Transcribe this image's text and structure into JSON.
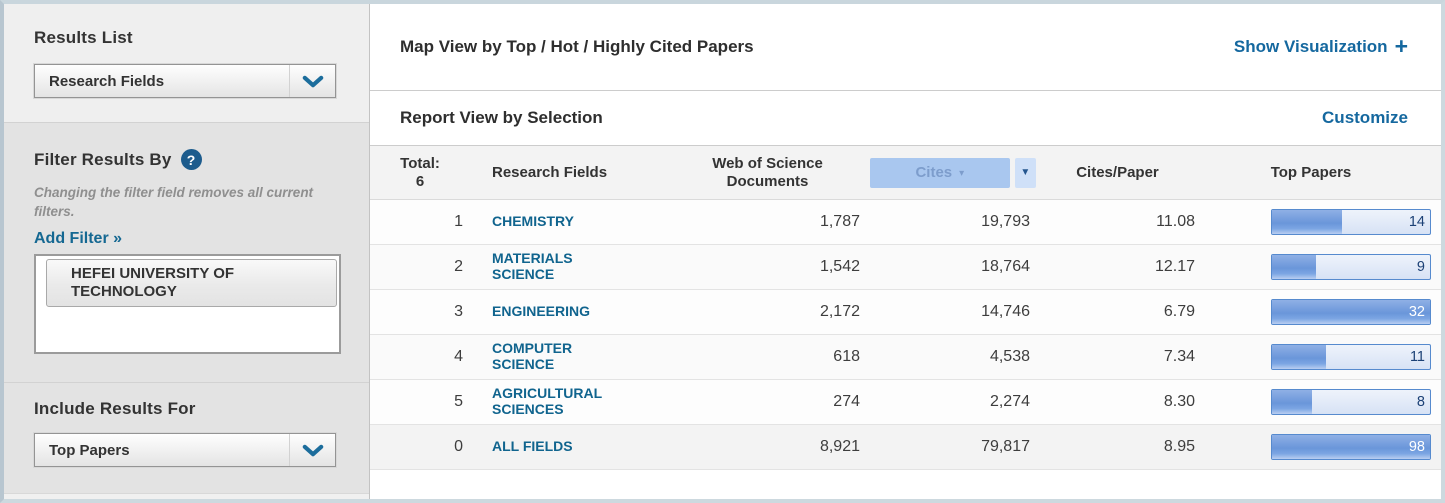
{
  "sidebar": {
    "results_list": {
      "label": "Results List",
      "value": "Research Fields"
    },
    "filter": {
      "label": "Filter Results By",
      "help_glyph": "?",
      "note": "Changing the filter field removes all current filters.",
      "add_filter_label": "Add Filter »",
      "selected_item": "HEFEI UNIVERSITY OF TECHNOLOGY"
    },
    "include": {
      "label": "Include Results For",
      "value": "Top Papers"
    }
  },
  "main": {
    "map_view": {
      "title": "Map View by Top / Hot / Highly Cited Papers",
      "action_label": "Show Visualization",
      "plus_glyph": "+"
    },
    "report_view": {
      "title": "Report View by Selection",
      "action_label": "Customize"
    },
    "table": {
      "total_label": "Total:",
      "total_value": "6",
      "columns": {
        "research_fields": "Research Fields",
        "documents": "Web of Science Documents",
        "cites": "Cites",
        "cites_per_paper": "Cites/Paper",
        "top_papers": "Top Papers"
      },
      "sort_caret": "▾",
      "cites_menu_arrow": "▼",
      "rows": [
        {
          "rank": "1",
          "field": "CHEMISTRY",
          "documents": "1,787",
          "cites": "19,793",
          "cites_per_paper": "11.08",
          "top_papers": "14",
          "bar_pct": 44
        },
        {
          "rank": "2",
          "field": "MATERIALS SCIENCE",
          "documents": "1,542",
          "cites": "18,764",
          "cites_per_paper": "12.17",
          "top_papers": "9",
          "bar_pct": 28
        },
        {
          "rank": "3",
          "field": "ENGINEERING",
          "documents": "2,172",
          "cites": "14,746",
          "cites_per_paper": "6.79",
          "top_papers": "32",
          "bar_pct": 100
        },
        {
          "rank": "4",
          "field": "COMPUTER SCIENCE",
          "documents": "618",
          "cites": "4,538",
          "cites_per_paper": "7.34",
          "top_papers": "11",
          "bar_pct": 34
        },
        {
          "rank": "5",
          "field": "AGRICULTURAL SCIENCES",
          "documents": "274",
          "cites": "2,274",
          "cites_per_paper": "8.30",
          "top_papers": "8",
          "bar_pct": 25
        },
        {
          "rank": "0",
          "field": "ALL FIELDS",
          "documents": "8,921",
          "cites": "79,817",
          "cites_per_paper": "8.95",
          "top_papers": "98",
          "bar_pct": 100
        }
      ]
    }
  },
  "colors": {
    "accent_link": "#15689f",
    "field_link": "#10648e",
    "cites_header_bg": "#a9c7ef",
    "bar_fill": "#6a96da",
    "bar_track": "#d7e2f5"
  }
}
